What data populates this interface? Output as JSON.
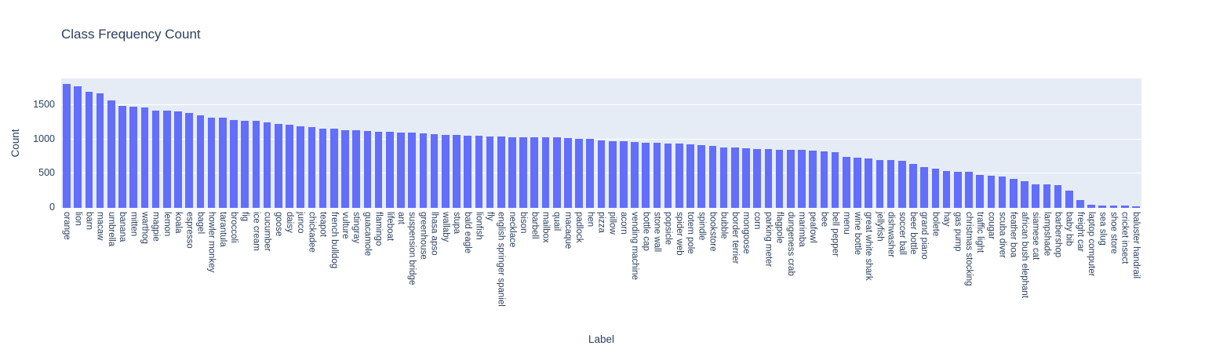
{
  "chart": {
    "title": "Class Frequency Count",
    "xlabel": "Label",
    "ylabel": "Count"
  },
  "chart_data": {
    "type": "bar",
    "title": "Class Frequency Count",
    "xlabel": "Label",
    "ylabel": "Count",
    "ylim": [
      0,
      1890
    ],
    "yticks": [
      0,
      500,
      1000,
      1500
    ],
    "grid": true,
    "legend": false,
    "bar_color": "#636efa",
    "plot_bg_color": "#e5ecf6",
    "text_color": "#2a3f5f",
    "categories": [
      "orange",
      "lion",
      "barn",
      "macaw",
      "umbrella",
      "banana",
      "mitten",
      "warthog",
      "magpie",
      "lemon",
      "koala",
      "espresso",
      "bagel",
      "howler monkey",
      "tarantula",
      "broccoli",
      "fig",
      "ice cream",
      "cucumber",
      "goose",
      "daisy",
      "junco",
      "chickadee",
      "teapot",
      "french bulldog",
      "vulture",
      "stingray",
      "guacamole",
      "flamingo",
      "lifeboat",
      "ant",
      "suspension bridge",
      "greenhouse",
      "lhasa apso",
      "wallaby",
      "stupa",
      "bald eagle",
      "lionfish",
      "fly",
      "english springer spaniel",
      "necklace",
      "bison",
      "barbell",
      "mailbox",
      "quail",
      "macaque",
      "padlock",
      "hen",
      "pizza",
      "pillow",
      "acorn",
      "vending machine",
      "bottle cap",
      "stone wall",
      "popsicle",
      "spider web",
      "totem pole",
      "spindle",
      "bookstore",
      "bubble",
      "border terrier",
      "mongoose",
      "corn",
      "parking meter",
      "flagpole",
      "dungeness crab",
      "marimba",
      "peafowl",
      "bee",
      "bell pepper",
      "menu",
      "wine bottle",
      "great white shark",
      "jellyfish",
      "dishwasher",
      "soccer ball",
      "beer bottle",
      "grand piano",
      "bolete",
      "hay",
      "gas pump",
      "christmas stocking",
      "traffic light",
      "cougar",
      "scuba diver",
      "feather boa",
      "african bush elephant",
      "siamese cat",
      "lampshade",
      "barbershop",
      "baby bib",
      "freight car",
      "laptop computer",
      "sea slug",
      "shoe store",
      "cricket insect",
      "baluster handrail"
    ],
    "values": [
      1810,
      1775,
      1690,
      1670,
      1570,
      1490,
      1483,
      1468,
      1420,
      1417,
      1408,
      1388,
      1355,
      1322,
      1318,
      1283,
      1275,
      1269,
      1254,
      1224,
      1211,
      1192,
      1176,
      1161,
      1152,
      1137,
      1133,
      1122,
      1114,
      1106,
      1102,
      1097,
      1086,
      1075,
      1066,
      1060,
      1057,
      1051,
      1047,
      1043,
      1036,
      1033,
      1031,
      1029,
      1026,
      1016,
      1011,
      1007,
      980,
      977,
      969,
      961,
      953,
      948,
      941,
      936,
      929,
      917,
      901,
      884,
      878,
      870,
      856,
      855,
      853,
      851,
      849,
      839,
      826,
      808,
      748,
      728,
      724,
      697,
      694,
      691,
      642,
      601,
      574,
      539,
      531,
      523,
      478,
      468,
      458,
      422,
      392,
      346,
      342,
      336,
      254,
      110,
      48,
      36,
      31,
      29,
      18
    ]
  }
}
